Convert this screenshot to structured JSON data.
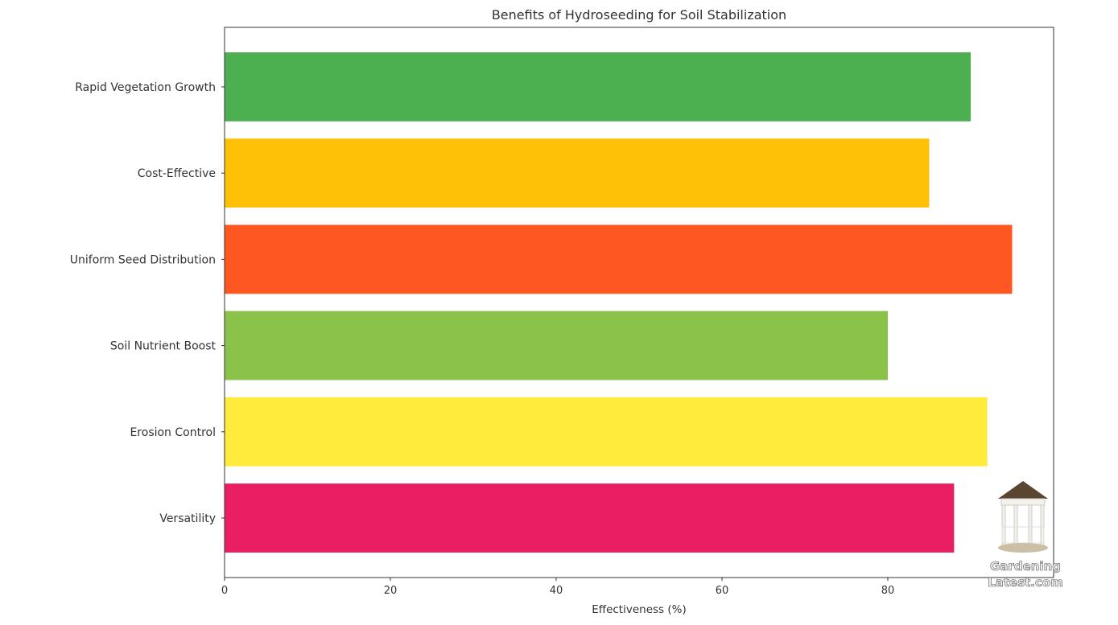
{
  "chart_data": {
    "type": "bar",
    "orientation": "horizontal",
    "title": "Benefits of Hydroseeding for Soil Stabilization",
    "xlabel": "Effectiveness (%)",
    "ylabel": "",
    "xlim": [
      0,
      100
    ],
    "xticks": [
      0,
      20,
      40,
      60,
      80
    ],
    "grid": false,
    "categories": [
      "Rapid Vegetation Growth",
      "Cost-Effective",
      "Uniform Seed Distribution",
      "Soil Nutrient Boost",
      "Erosion Control",
      "Versatility"
    ],
    "values": [
      90,
      85,
      95,
      80,
      92,
      88
    ],
    "colors": [
      "#4CAF50",
      "#FFC107",
      "#FF5722",
      "#8BC34A",
      "#FFEB3B",
      "#E91E63"
    ]
  },
  "watermark": {
    "line1": "Gardening",
    "line2": "Latest.com"
  }
}
